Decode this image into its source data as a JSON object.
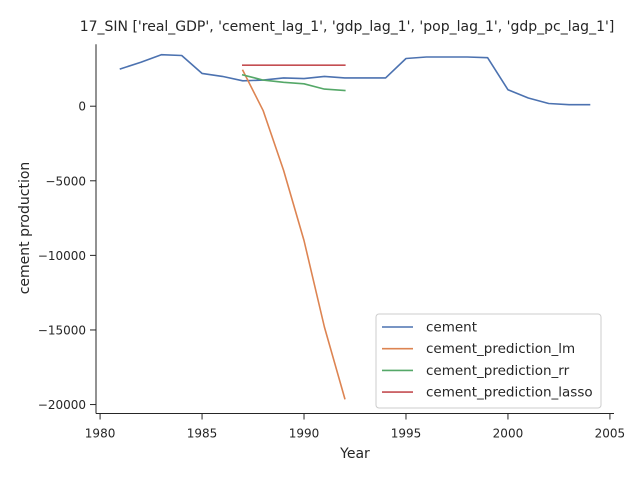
{
  "chart_data": {
    "type": "line",
    "title": "17_SIN ['real_GDP', 'cement_lag_1', 'gdp_lag_1', 'pop_lag_1', 'gdp_pc_lag_1']",
    "xlabel": "Year",
    "ylabel": "cement production",
    "xlim": [
      1979.8,
      2005.2
    ],
    "ylim": [
      -20600,
      4150
    ],
    "xticks": [
      1980,
      1985,
      1990,
      1995,
      2000,
      2005
    ],
    "yticks": [
      0,
      -5000,
      -10000,
      -15000,
      -20000
    ],
    "grid": false,
    "legend_position": "lower-right",
    "series": [
      {
        "name": "cement",
        "color": "#4c72b0",
        "x": [
          1981,
          1982,
          1983,
          1984,
          1985,
          1986,
          1987,
          1988,
          1989,
          1990,
          1991,
          1992,
          1993,
          1994,
          1995,
          1996,
          1997,
          1998,
          1999,
          2000,
          2001,
          2002,
          2003,
          2004
        ],
        "y": [
          2500,
          2950,
          3450,
          3400,
          2200,
          2000,
          1700,
          1750,
          1900,
          1850,
          2000,
          1900,
          1900,
          1900,
          3200,
          3300,
          3300,
          3300,
          3250,
          1100,
          550,
          180,
          100,
          100
        ]
      },
      {
        "name": "cement_prediction_lm",
        "color": "#dd8452",
        "x": [
          1987,
          1988,
          1989,
          1990,
          1991,
          1992
        ],
        "y": [
          2400,
          -300,
          -4300,
          -9000,
          -14800,
          -19600
        ]
      },
      {
        "name": "cement_prediction_rr",
        "color": "#55a868",
        "x": [
          1987,
          1988,
          1989,
          1990,
          1991,
          1992
        ],
        "y": [
          2100,
          1750,
          1600,
          1500,
          1150,
          1050
        ]
      },
      {
        "name": "cement_prediction_lasso",
        "color": "#c44e52",
        "x": [
          1987,
          1988,
          1989,
          1990,
          1991,
          1992
        ],
        "y": [
          2750,
          2750,
          2750,
          2750,
          2750,
          2750
        ]
      }
    ]
  }
}
